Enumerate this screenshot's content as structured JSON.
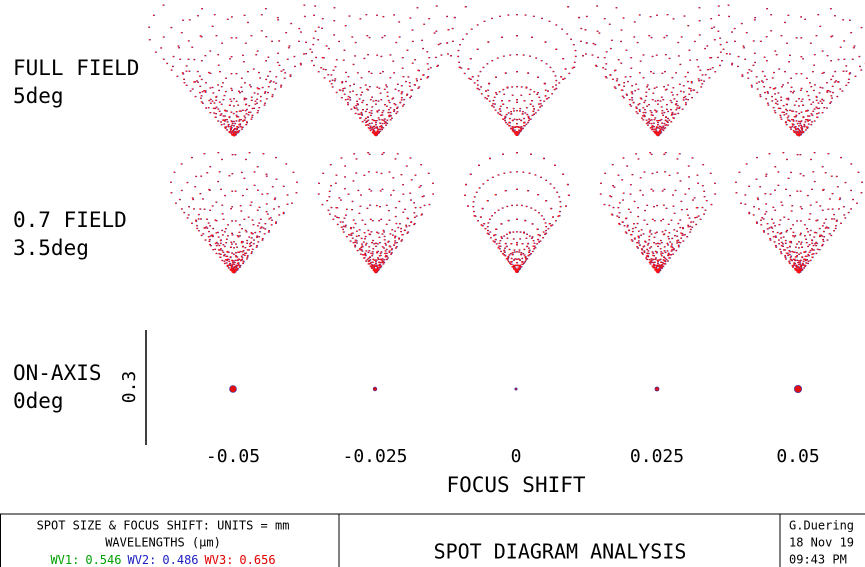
{
  "fields": [
    {
      "name": "FULL FIELD",
      "angle": "5deg"
    },
    {
      "name": "0.7 FIELD",
      "angle": "3.5deg"
    },
    {
      "name": "ON-AXIS",
      "angle": "0deg"
    }
  ],
  "scale_bar": "0.3",
  "focus_shifts": [
    -0.05,
    -0.025,
    0,
    0.025,
    0.05
  ],
  "x_axis_label": "FOCUS SHIFT",
  "footer": {
    "units": "SPOT SIZE & FOCUS SHIFT: UNITS = mm",
    "wavelengths_label": "WAVELENGTHS (µm)",
    "wavelengths": [
      {
        "name": "WV1:",
        "value": "0.546",
        "color": "#00a000"
      },
      {
        "name": "WV2:",
        "value": "0.486",
        "color": "#2020c0"
      },
      {
        "name": "WV3:",
        "value": "0.656",
        "color": "#e00000"
      }
    ],
    "title": "SPOT DIAGRAM ANALYSIS",
    "author": "G.Duering",
    "date": "18 Nov 19",
    "time": "09:43 PM"
  }
}
